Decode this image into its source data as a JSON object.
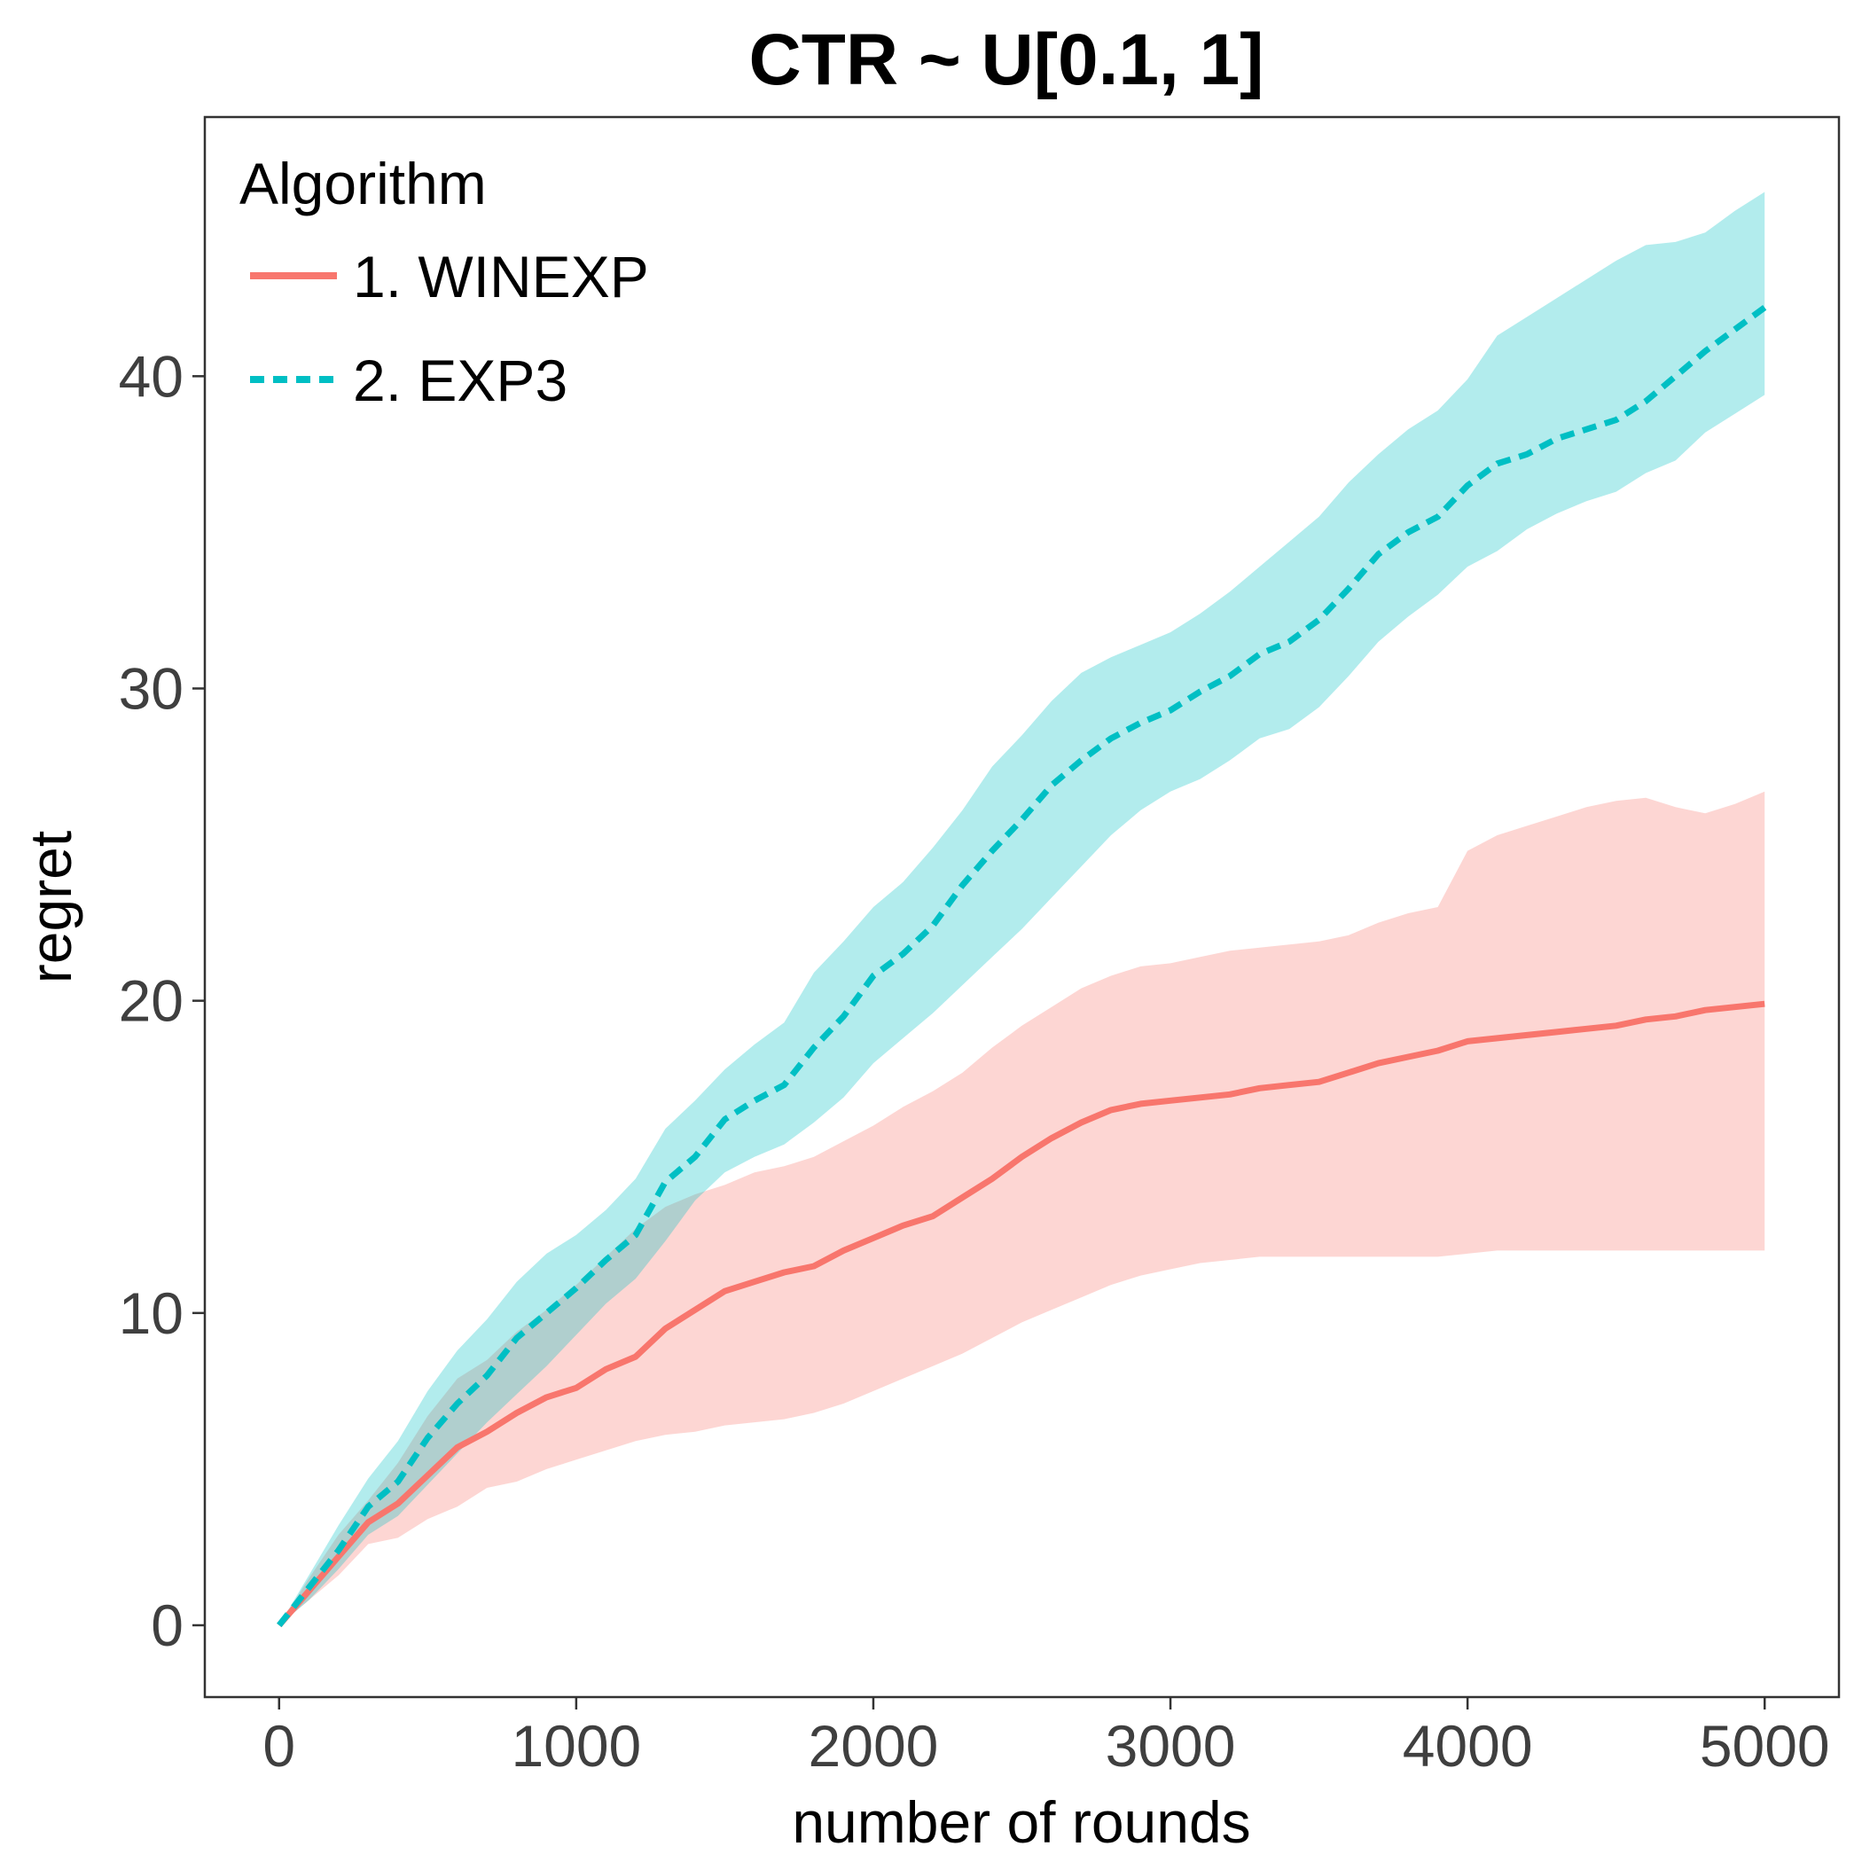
{
  "chart_data": {
    "type": "line",
    "title": "CTR ~ U[0.1, 1]",
    "xlabel": "number of rounds",
    "ylabel": "regret",
    "xlim": [
      -250,
      5250
    ],
    "ylim": [
      -2.3,
      48.3
    ],
    "x_ticks": [
      0,
      1000,
      2000,
      3000,
      4000,
      5000
    ],
    "x_tick_labels": [
      "0",
      "1000",
      "2000",
      "3000",
      "4000",
      "5000"
    ],
    "y_ticks": [
      0,
      10,
      20,
      30,
      40
    ],
    "y_tick_labels": [
      "0",
      "10",
      "20",
      "30",
      "40"
    ],
    "grid": false,
    "legend": {
      "title": "Algorithm",
      "position": "top-left",
      "entries": [
        "1. WINEXP",
        "2. EXP3"
      ]
    },
    "x": [
      0,
      100,
      200,
      300,
      400,
      500,
      600,
      700,
      800,
      900,
      1000,
      1100,
      1200,
      1300,
      1400,
      1500,
      1600,
      1700,
      1800,
      1900,
      2000,
      2100,
      2200,
      2300,
      2400,
      2500,
      2600,
      2700,
      2800,
      2900,
      3000,
      3100,
      3200,
      3300,
      3400,
      3500,
      3600,
      3700,
      3800,
      3900,
      4000,
      4100,
      4200,
      4300,
      4400,
      4500,
      4600,
      4700,
      4800,
      4900,
      5000
    ],
    "series": [
      {
        "name": "1. WINEXP",
        "color": "#f8766d",
        "line_style": "solid",
        "values": [
          0,
          1.1,
          2.2,
          3.3,
          3.9,
          4.8,
          5.7,
          6.2,
          6.8,
          7.3,
          7.6,
          8.2,
          8.6,
          9.5,
          10.1,
          10.7,
          11.0,
          11.3,
          11.5,
          12.0,
          12.4,
          12.8,
          13.1,
          13.7,
          14.3,
          15.0,
          15.6,
          16.1,
          16.5,
          16.7,
          16.8,
          16.9,
          17.0,
          17.2,
          17.3,
          17.4,
          17.7,
          18.0,
          18.2,
          18.4,
          18.7,
          18.8,
          18.9,
          19.0,
          19.1,
          19.2,
          19.4,
          19.5,
          19.7,
          19.8,
          19.9
        ],
        "lower": [
          0,
          0.8,
          1.6,
          2.6,
          2.8,
          3.4,
          3.8,
          4.4,
          4.6,
          5.0,
          5.3,
          5.6,
          5.9,
          6.1,
          6.2,
          6.4,
          6.5,
          6.6,
          6.8,
          7.1,
          7.5,
          7.9,
          8.3,
          8.7,
          9.2,
          9.7,
          10.1,
          10.5,
          10.9,
          11.2,
          11.4,
          11.6,
          11.7,
          11.8,
          11.8,
          11.8,
          11.8,
          11.8,
          11.8,
          11.8,
          11.9,
          12.0,
          12.0,
          12.0,
          12.0,
          12.0,
          12.0,
          12.0,
          12.0,
          12.0,
          12.0
        ],
        "upper": [
          0,
          1.5,
          2.9,
          4.0,
          5.2,
          6.7,
          7.9,
          8.5,
          9.4,
          10.1,
          10.9,
          11.8,
          12.7,
          13.4,
          13.8,
          14.1,
          14.5,
          14.7,
          15.0,
          15.5,
          16.0,
          16.6,
          17.1,
          17.7,
          18.5,
          19.2,
          19.8,
          20.4,
          20.8,
          21.1,
          21.2,
          21.4,
          21.6,
          21.7,
          21.8,
          21.9,
          22.1,
          22.5,
          22.8,
          23.0,
          24.8,
          25.3,
          25.6,
          25.9,
          26.2,
          26.4,
          26.5,
          26.2,
          26.0,
          26.3,
          26.7
        ]
      },
      {
        "name": "2. EXP3",
        "color": "#00bfc4",
        "line_style": "dashed",
        "values": [
          0,
          1.2,
          2.4,
          3.8,
          4.6,
          6.0,
          7.1,
          8.0,
          9.2,
          10.0,
          10.8,
          11.7,
          12.5,
          14.2,
          15.0,
          16.2,
          16.8,
          17.3,
          18.5,
          19.5,
          20.8,
          21.5,
          22.4,
          23.7,
          24.8,
          25.8,
          26.9,
          27.7,
          28.4,
          28.9,
          29.3,
          29.9,
          30.4,
          31.1,
          31.5,
          32.2,
          33.2,
          34.3,
          35.0,
          35.5,
          36.5,
          37.2,
          37.5,
          38.0,
          38.3,
          38.6,
          39.2,
          40.0,
          40.8,
          41.5,
          42.2
        ],
        "lower": [
          0,
          0.8,
          1.8,
          2.9,
          3.5,
          4.5,
          5.5,
          6.5,
          7.4,
          8.3,
          9.3,
          10.3,
          11.1,
          12.3,
          13.6,
          14.5,
          15.0,
          15.4,
          16.1,
          16.9,
          18.0,
          18.8,
          19.6,
          20.5,
          21.4,
          22.3,
          23.3,
          24.3,
          25.3,
          26.1,
          26.7,
          27.1,
          27.7,
          28.4,
          28.7,
          29.4,
          30.4,
          31.5,
          32.3,
          33.0,
          33.9,
          34.4,
          35.1,
          35.6,
          36.0,
          36.3,
          36.9,
          37.3,
          38.2,
          38.8,
          39.4
        ],
        "upper": [
          0,
          1.6,
          3.2,
          4.7,
          5.9,
          7.5,
          8.8,
          9.8,
          11.0,
          11.9,
          12.5,
          13.3,
          14.3,
          15.9,
          16.8,
          17.8,
          18.6,
          19.3,
          20.9,
          21.9,
          23.0,
          23.8,
          24.9,
          26.1,
          27.5,
          28.5,
          29.6,
          30.5,
          31.0,
          31.4,
          31.8,
          32.4,
          33.1,
          33.9,
          34.7,
          35.5,
          36.6,
          37.5,
          38.3,
          38.9,
          39.9,
          41.3,
          41.9,
          42.5,
          43.1,
          43.7,
          44.2,
          44.3,
          44.6,
          45.3,
          45.9
        ]
      }
    ]
  }
}
